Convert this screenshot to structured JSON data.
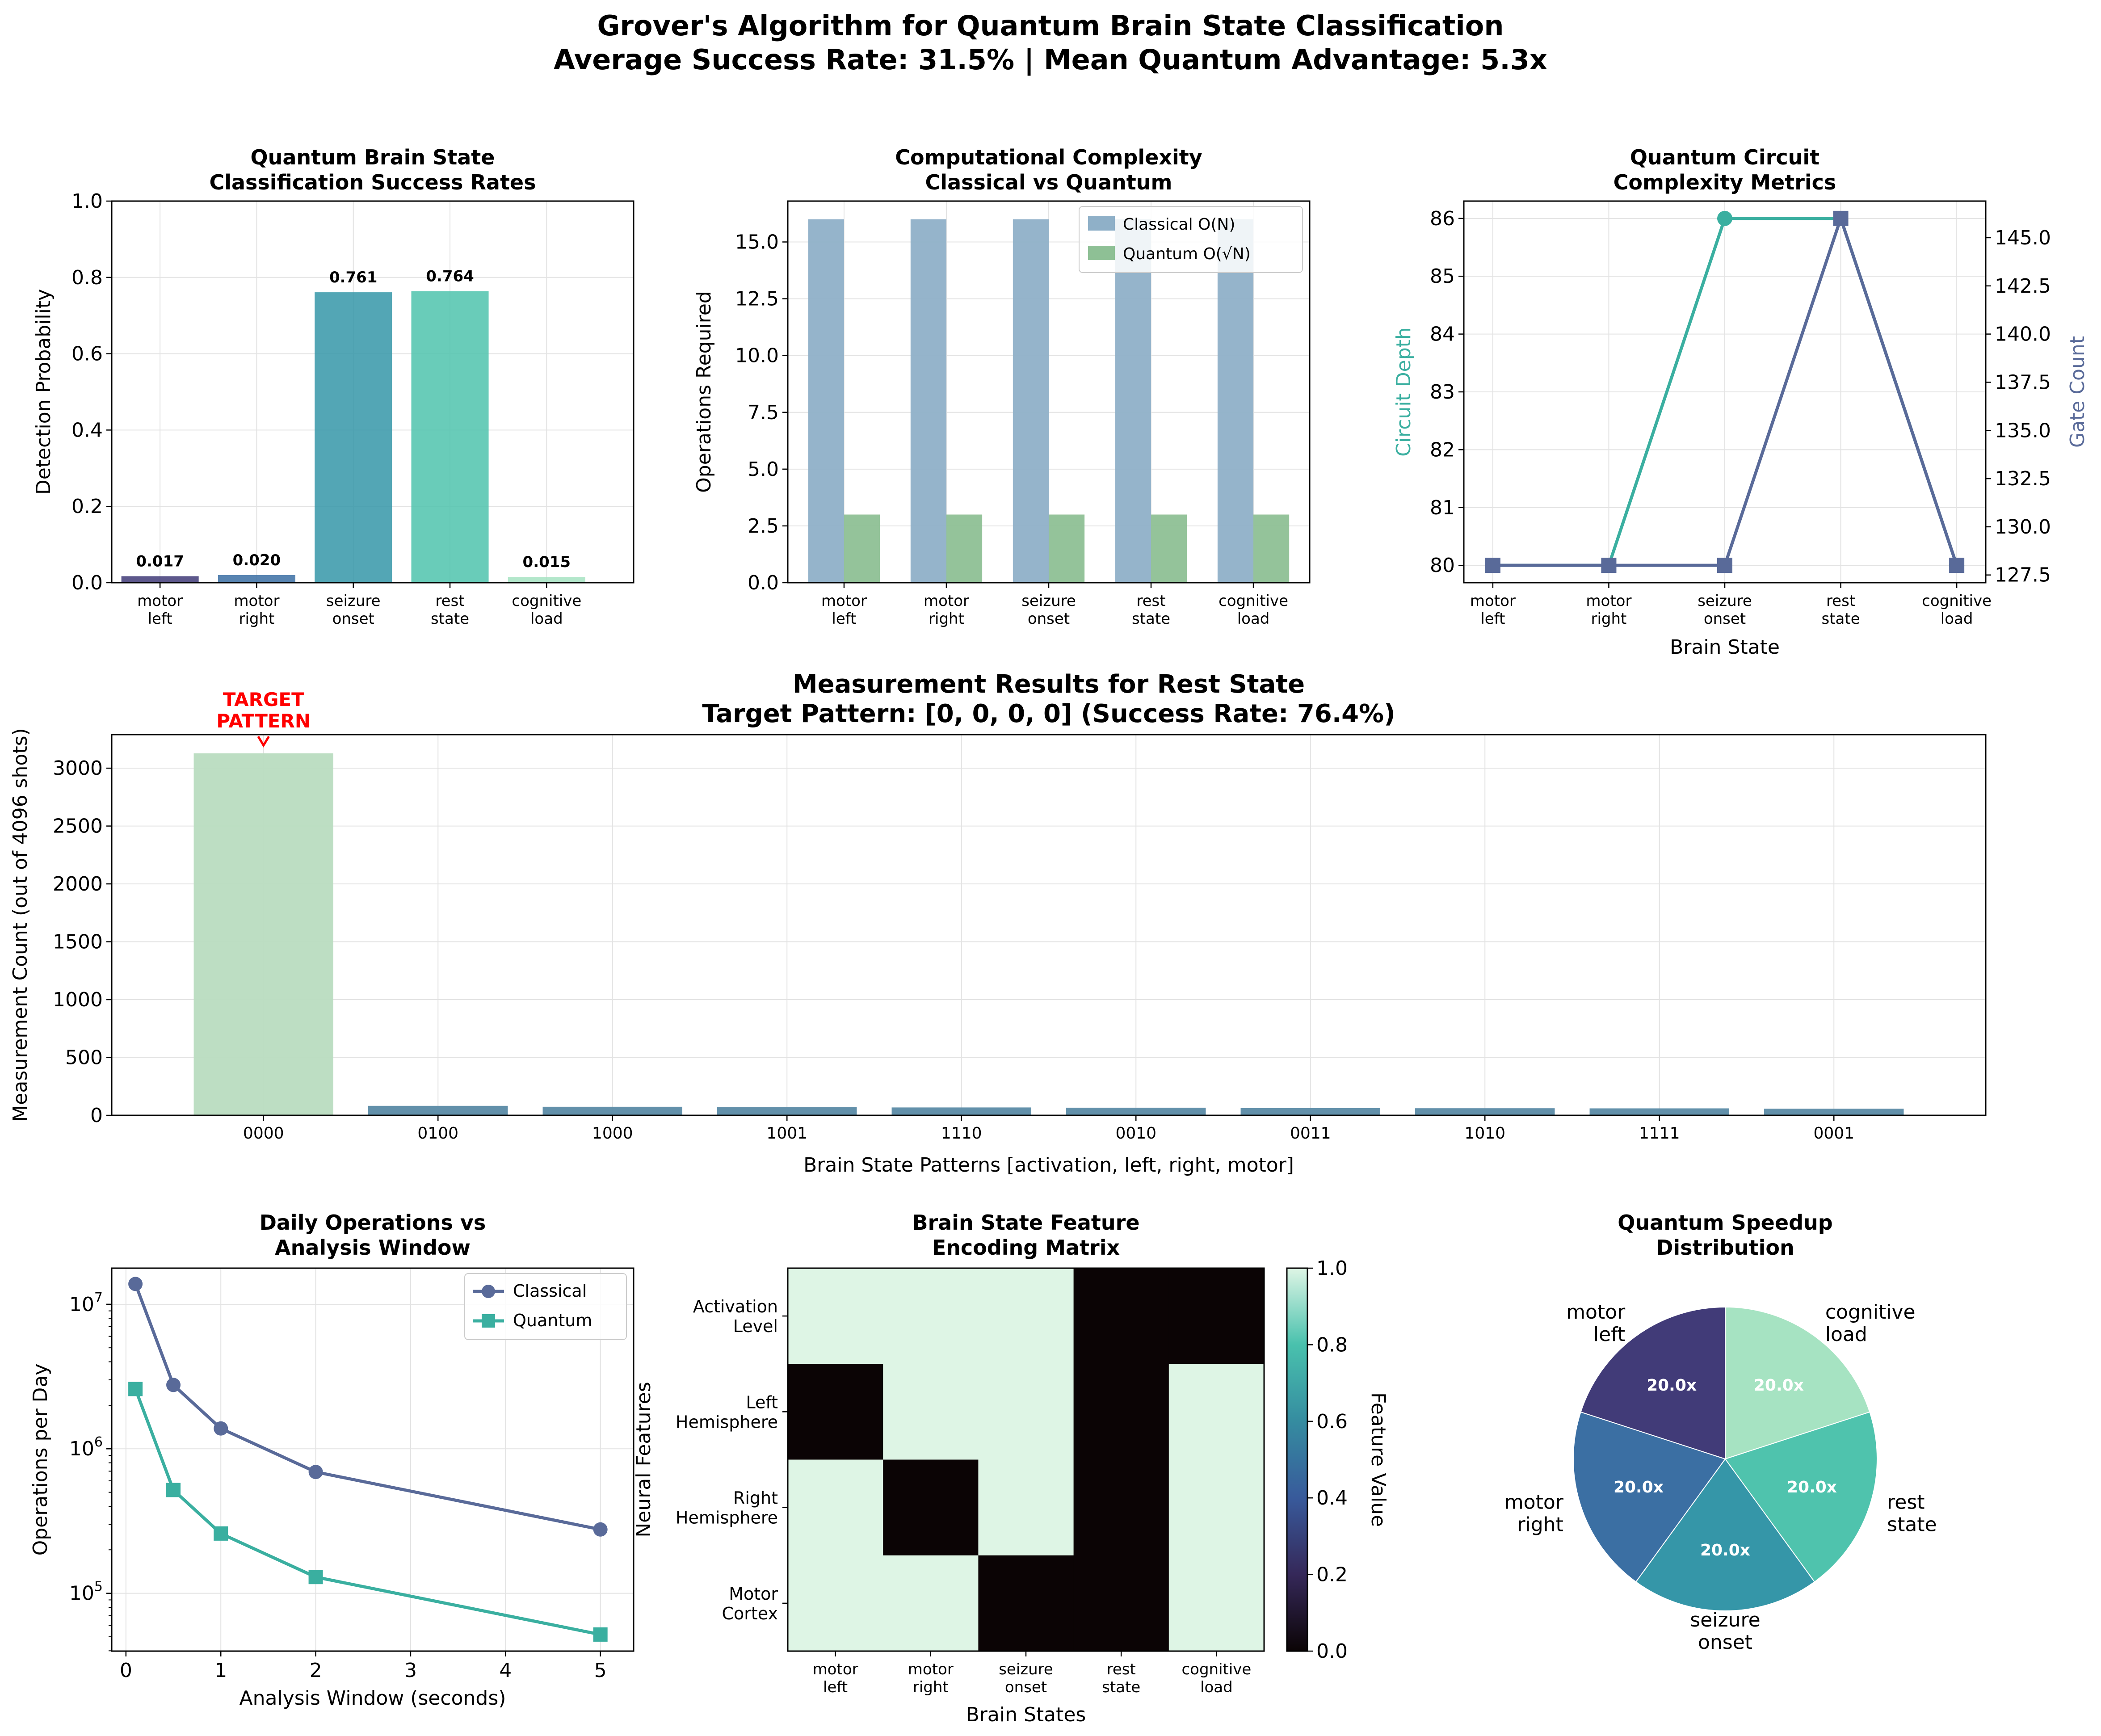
{
  "figure": {
    "suptitle_line1": "Grover's Algorithm for Quantum Brain State Classification",
    "suptitle_line2": "Average Success Rate: 31.5% | Mean Quantum Advantage: 5.3x"
  },
  "palette": {
    "viridis_like": [
      "#413b78",
      "#3b6fa3",
      "#3596a8",
      "#4fc3ad",
      "#a6e3c2"
    ],
    "classical": "#8fb0c8",
    "quantum": "#8ec095",
    "depth": "#3aafa0",
    "gates": "#596a99",
    "target_bar": "#b9dcc0",
    "other_bar": "#5a8aa5",
    "annotation": "#ff0000"
  },
  "chart_data": [
    {
      "id": "success",
      "type": "bar",
      "title": [
        "Quantum Brain State",
        "Classification Success Rates"
      ],
      "xlabel": "",
      "ylabel": "Detection Probability",
      "categories": [
        [
          "motor",
          "left"
        ],
        [
          "motor",
          "right"
        ],
        [
          "seizure",
          "onset"
        ],
        [
          "rest",
          "state"
        ],
        [
          "cognitive",
          "load"
        ]
      ],
      "values": [
        0.017,
        0.02,
        0.761,
        0.764,
        0.015
      ],
      "value_labels": [
        "0.017",
        "0.020",
        "0.761",
        "0.764",
        "0.015"
      ],
      "ylim": [
        0,
        1.0
      ],
      "yticks": [
        "0.0",
        "0.2",
        "0.4",
        "0.6",
        "0.8",
        "1.0"
      ],
      "grid": true
    },
    {
      "id": "complexity",
      "type": "bar",
      "title": [
        "Computational Complexity",
        "Classical vs Quantum"
      ],
      "xlabel": "",
      "ylabel": "Operations Required",
      "categories": [
        [
          "motor",
          "left"
        ],
        [
          "motor",
          "right"
        ],
        [
          "seizure",
          "onset"
        ],
        [
          "rest",
          "state"
        ],
        [
          "cognitive",
          "load"
        ]
      ],
      "series": [
        {
          "name": "Classical O(N)",
          "values": [
            16,
            16,
            16,
            16,
            16
          ]
        },
        {
          "name": "Quantum O(√N)",
          "values": [
            3,
            3,
            3,
            3,
            3
          ]
        }
      ],
      "ylim": [
        0,
        16.8
      ],
      "yticks": [
        "0.0",
        "2.5",
        "5.0",
        "7.5",
        "10.0",
        "12.5",
        "15.0"
      ],
      "legend": "top-right",
      "grid": true
    },
    {
      "id": "circuit",
      "type": "line",
      "title": [
        "Quantum Circuit",
        "Complexity Metrics"
      ],
      "xlabel": "Brain State",
      "ylabel": "Circuit Depth",
      "y2label": "Gate Count",
      "categories": [
        [
          "motor",
          "left"
        ],
        [
          "motor",
          "right"
        ],
        [
          "seizure",
          "onset"
        ],
        [
          "rest",
          "state"
        ],
        [
          "cognitive",
          "load"
        ]
      ],
      "series": [
        {
          "axis": "left",
          "values": [
            80,
            80,
            86,
            86,
            80
          ]
        },
        {
          "axis": "right",
          "values": [
            128,
            128,
            128,
            146,
            128
          ]
        }
      ],
      "ylim": [
        79.7,
        86.3
      ],
      "yticks": [
        "80",
        "81",
        "82",
        "83",
        "84",
        "85",
        "86"
      ],
      "y2lim": [
        127.1,
        146.9
      ],
      "y2ticks": [
        "127.5",
        "130.0",
        "132.5",
        "135.0",
        "137.5",
        "140.0",
        "142.5",
        "145.0"
      ],
      "grid": true
    },
    {
      "id": "measurement",
      "type": "bar",
      "title": [
        "Measurement Results for Rest State",
        "Target Pattern: [0, 0, 0, 0] (Success Rate: 76.4%)"
      ],
      "xlabel": "Brain State Patterns [activation, left, right, motor]",
      "ylabel": "Measurement Count (out of 4096 shots)",
      "categories": [
        "0000",
        "0100",
        "1000",
        "1001",
        "1110",
        "0010",
        "0011",
        "1010",
        "1111",
        "0001"
      ],
      "values": [
        3128,
        82,
        74,
        70,
        68,
        66,
        63,
        61,
        60,
        58
      ],
      "ylim": [
        0,
        3290
      ],
      "yticks": [
        "0",
        "500",
        "1000",
        "1500",
        "2000",
        "2500",
        "3000"
      ],
      "annotation": [
        "TARGET",
        "PATTERN"
      ],
      "grid": true
    },
    {
      "id": "daily",
      "type": "line",
      "title": [
        "Daily Operations vs",
        "Analysis Window"
      ],
      "xlabel": "Analysis Window (seconds)",
      "ylabel": "Operations per Day",
      "yscale": "log",
      "x": [
        0.1,
        0.5,
        1,
        2,
        5
      ],
      "series": [
        {
          "name": "Classical",
          "values": [
            13824000,
            2764800,
            1382400,
            691200,
            276480
          ]
        },
        {
          "name": "Quantum",
          "values": [
            2592000,
            518400,
            259200,
            129600,
            51840
          ]
        }
      ],
      "xlim": [
        -0.15,
        5.35
      ],
      "xticks": [
        "0",
        "1",
        "2",
        "3",
        "4",
        "5"
      ],
      "ylim_log10": [
        4.6,
        7.25
      ],
      "yticks": [
        {
          "base": "10",
          "exp": "5"
        },
        {
          "base": "10",
          "exp": "6"
        },
        {
          "base": "10",
          "exp": "7"
        }
      ],
      "legend": "top-right",
      "grid": true
    },
    {
      "id": "heatmap",
      "type": "heatmap",
      "title": [
        "Brain State Feature",
        "Encoding Matrix"
      ],
      "xlabel": "Brain States",
      "ylabel": "Neural Features",
      "columns": [
        [
          "motor",
          "left"
        ],
        [
          "motor",
          "right"
        ],
        [
          "seizure",
          "onset"
        ],
        [
          "rest",
          "state"
        ],
        [
          "cognitive",
          "load"
        ]
      ],
      "rows": [
        [
          "Activation",
          "Level"
        ],
        [
          "Left",
          "Hemisphere"
        ],
        [
          "Right",
          "Hemisphere"
        ],
        [
          "Motor",
          "Cortex"
        ]
      ],
      "values": [
        [
          1,
          1,
          1,
          0,
          0
        ],
        [
          0,
          1,
          1,
          0,
          1
        ],
        [
          1,
          0,
          1,
          0,
          1
        ],
        [
          1,
          1,
          0,
          0,
          1
        ]
      ],
      "colorbar_label": "Feature Value",
      "colorbar_ticks": [
        "0.0",
        "0.2",
        "0.4",
        "0.6",
        "0.8",
        "1.0"
      ],
      "vmin": 0,
      "vmax": 1
    },
    {
      "id": "speedup",
      "type": "pie",
      "title": [
        "Quantum Speedup",
        "Distribution"
      ],
      "labels": [
        [
          "cognitive",
          "load"
        ],
        [
          "rest",
          "state"
        ],
        [
          "seizure",
          "onset"
        ],
        [
          "motor",
          "right"
        ],
        [
          "motor",
          "left"
        ]
      ],
      "values": [
        20.0,
        20.0,
        20.0,
        20.0,
        20.0
      ],
      "value_labels": [
        "20.0x",
        "20.0x",
        "20.0x",
        "20.0x",
        "20.0x"
      ]
    }
  ]
}
